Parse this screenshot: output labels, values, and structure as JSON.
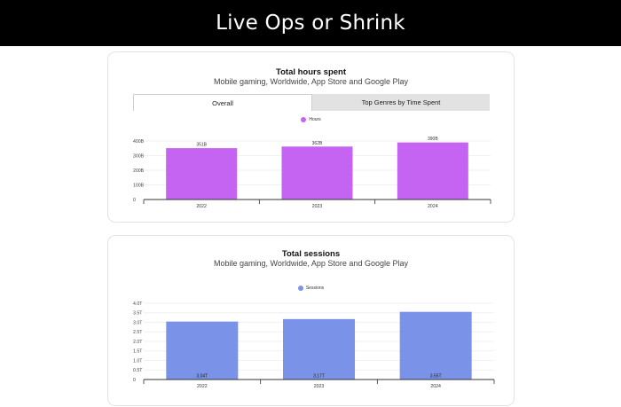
{
  "header": {
    "title": "Live Ops or Shrink"
  },
  "hours_card": {
    "title": "Total hours spent",
    "subtitle": "Mobile gaming, Worldwide, App Store and Google Play",
    "tabs": [
      {
        "label": "Overall",
        "active": true
      },
      {
        "label": "Top Genres by Time Spent",
        "active": false
      }
    ]
  },
  "sessions_card": {
    "title": "Total sessions",
    "subtitle": "Mobile gaming, Worldwide, App Store and Google Play"
  },
  "chart_data": [
    {
      "type": "bar",
      "title": "Total hours spent",
      "subtitle": "Mobile gaming, Worldwide, App Store and Google Play",
      "categories": [
        "2022",
        "2023",
        "2024"
      ],
      "series": [
        {
          "name": "Hours",
          "values": [
            351,
            362,
            390
          ],
          "labels": [
            "351B",
            "362B",
            "390B"
          ],
          "color": "#c564f2"
        }
      ],
      "yticks": [
        0,
        100,
        200,
        300,
        400
      ],
      "ytick_labels": [
        "0",
        "100B",
        "200B",
        "300B",
        "400B"
      ],
      "ylim": [
        0,
        400
      ],
      "legend": "top-center",
      "grid": true,
      "value_label_position": "above"
    },
    {
      "type": "bar",
      "title": "Total sessions",
      "subtitle": "Mobile gaming, Worldwide, App Store and Google Play",
      "categories": [
        "2022",
        "2023",
        "2024"
      ],
      "series": [
        {
          "name": "Sessions",
          "values": [
            3.04,
            3.17,
            3.55
          ],
          "labels": [
            "3.04T",
            "3.17T",
            "3.55T"
          ],
          "color": "#7a93e8"
        }
      ],
      "yticks": [
        0,
        0.5,
        1.0,
        1.5,
        2.0,
        2.5,
        3.0,
        3.5,
        4.0
      ],
      "ytick_labels": [
        "0",
        "0.5T",
        "1.0T",
        "1.5T",
        "2.0T",
        "2.5T",
        "3.0T",
        "3.5T",
        "4.0T"
      ],
      "ylim": [
        0,
        4.0
      ],
      "legend": "top-center",
      "grid": true,
      "value_label_position": "inside-bottom"
    }
  ]
}
